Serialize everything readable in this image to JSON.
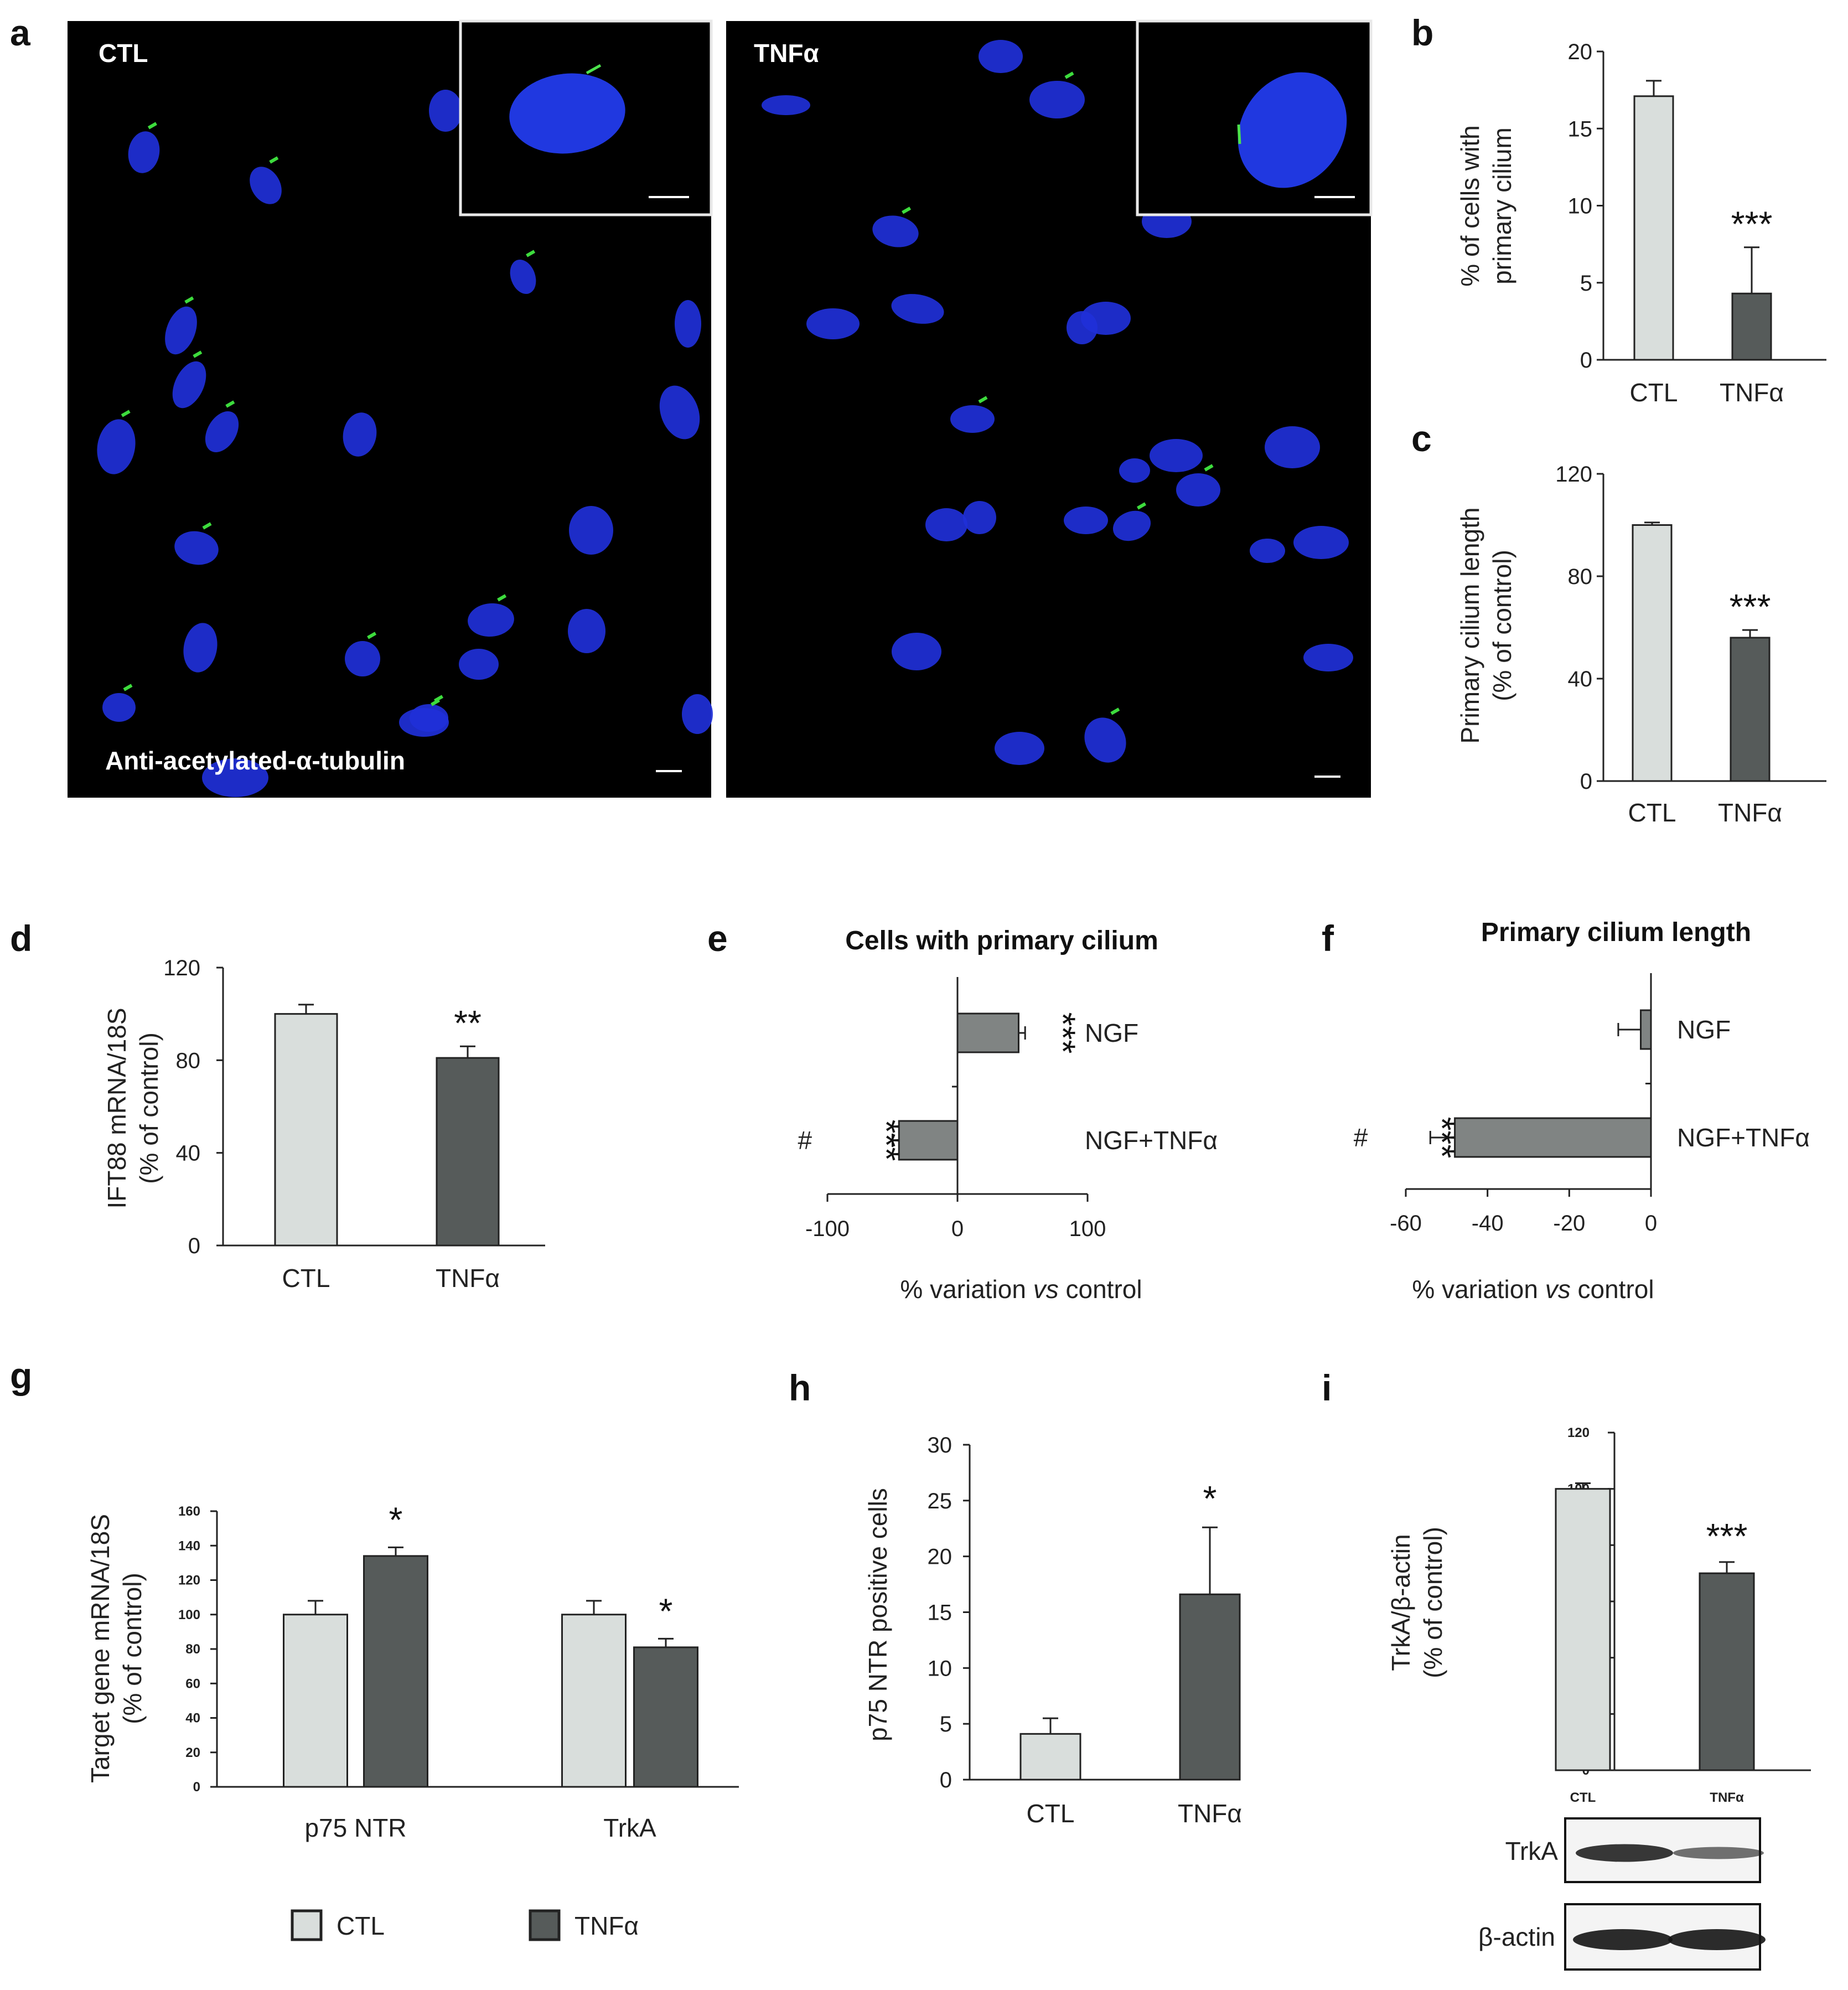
{
  "colors": {
    "ctl": "#d9dedc",
    "tnf": "#565b5a",
    "hbar": "#808483",
    "axis": "#222222",
    "nucleus": "#2030d8",
    "cilium": "#3ddc3d",
    "micro_bg": "#000000"
  },
  "panel_a": {
    "letter": "a",
    "left_label": "CTL",
    "right_label": "TNFα",
    "stain_label": "Anti-acetylated-α-tubulin"
  },
  "chart_data": [
    {
      "id": "b",
      "letter": "b",
      "type": "bar",
      "categories": [
        "CTL",
        "TNFα"
      ],
      "values": [
        17.1,
        4.3
      ],
      "errors": [
        1.0,
        3.0
      ],
      "significance": [
        "",
        "***"
      ],
      "ylabel_lines": [
        "% of cells with",
        "primary cilium"
      ],
      "ylim": [
        0,
        20
      ],
      "yticks": [
        0,
        5,
        10,
        15,
        20
      ]
    },
    {
      "id": "c",
      "letter": "c",
      "type": "bar",
      "categories": [
        "CTL",
        "TNFα"
      ],
      "values": [
        100,
        56
      ],
      "errors": [
        1.0,
        3.0
      ],
      "significance": [
        "",
        "***"
      ],
      "ylabel_lines": [
        "Primary cilium length",
        "(% of control)"
      ],
      "ylim": [
        0,
        120
      ],
      "yticks": [
        0,
        40,
        80,
        120
      ]
    },
    {
      "id": "d",
      "letter": "d",
      "type": "bar",
      "categories": [
        "CTL",
        "TNFα"
      ],
      "values": [
        100,
        81
      ],
      "errors": [
        4,
        5
      ],
      "significance": [
        "",
        "**"
      ],
      "ylabel_lines": [
        "IFT88 mRNA/18S",
        "(% of control)"
      ],
      "ylim": [
        0,
        120
      ],
      "yticks": [
        0,
        40,
        80,
        120
      ]
    },
    {
      "id": "e",
      "letter": "e",
      "type": "bar",
      "orientation": "horizontal",
      "title": "Cells with primary cilium",
      "categories": [
        "NGF",
        "NGF+TNFα"
      ],
      "values": [
        47,
        -45
      ],
      "errors": [
        5,
        5
      ],
      "significance": [
        "***",
        "***"
      ],
      "hash": [
        "",
        "#"
      ],
      "xlabel_parts": [
        "% variation ",
        "vs",
        " control"
      ],
      "xlim": [
        -100,
        100
      ],
      "xticks": [
        -100,
        0,
        100
      ]
    },
    {
      "id": "f",
      "letter": "f",
      "type": "bar",
      "orientation": "horizontal",
      "title": "Primary cilium length",
      "categories": [
        "NGF",
        "NGF+TNFα"
      ],
      "values": [
        -2.5,
        -48
      ],
      "errors": [
        5.5,
        6
      ],
      "significance": [
        "",
        "***"
      ],
      "hash": [
        "",
        "#"
      ],
      "xlabel_parts": [
        "% variation ",
        "vs",
        " control"
      ],
      "xlim": [
        -60,
        0
      ],
      "xticks": [
        -60,
        -40,
        -20,
        0
      ]
    },
    {
      "id": "g",
      "letter": "g",
      "type": "bar",
      "categories": [
        "p75 NTR",
        "TrkA"
      ],
      "series": [
        {
          "name": "CTL",
          "values": [
            100,
            100
          ],
          "errors": [
            8,
            8
          ]
        },
        {
          "name": "TNFα",
          "values": [
            134,
            81
          ],
          "errors": [
            5,
            5
          ]
        }
      ],
      "significance": [
        "*",
        "*"
      ],
      "ylabel_lines": [
        "Target gene mRNA/18S",
        "(% of control)"
      ],
      "ylim": [
        0,
        160
      ],
      "yticks": [
        0,
        20,
        40,
        60,
        80,
        100,
        120,
        140,
        160
      ],
      "legend": [
        "CTL",
        "TNFα"
      ]
    },
    {
      "id": "h",
      "letter": "h",
      "type": "bar",
      "categories": [
        "CTL",
        "TNFα"
      ],
      "values": [
        4.1,
        16.6
      ],
      "errors": [
        1.4,
        6.0
      ],
      "significance": [
        "",
        "*"
      ],
      "ylabel_lines": [
        "p75 NTR positive cells"
      ],
      "ylim": [
        0,
        30
      ],
      "yticks": [
        0,
        5,
        10,
        15,
        20,
        25,
        30
      ]
    },
    {
      "id": "i",
      "letter": "i",
      "type": "bar",
      "categories": [
        "CTL",
        "TNFα"
      ],
      "values": [
        100,
        70
      ],
      "errors": [
        2,
        4
      ],
      "significance": [
        "",
        "***"
      ],
      "ylabel_lines": [
        "TrkA/β-actin",
        "(% of control)"
      ],
      "ylim": [
        0,
        120
      ],
      "yticks": [
        0,
        20,
        40,
        60,
        80,
        100,
        120
      ],
      "blot_labels": [
        "TrkA",
        "β-actin"
      ]
    }
  ]
}
